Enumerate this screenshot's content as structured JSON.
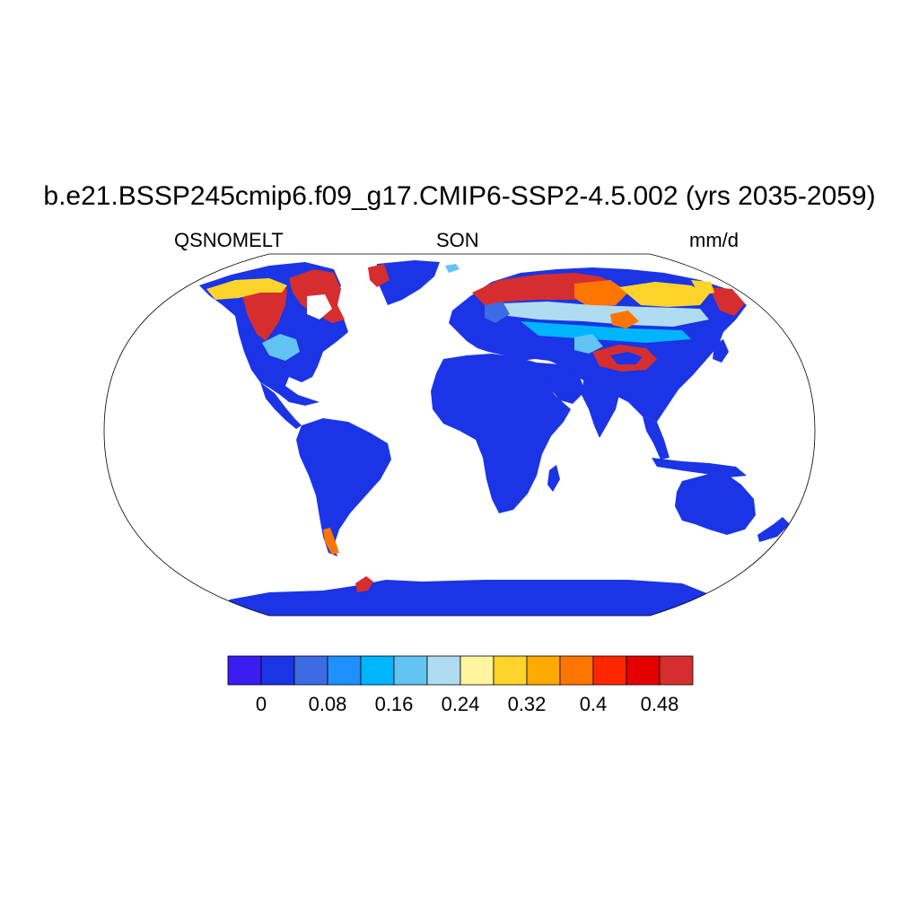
{
  "title": "b.e21.BSSP245cmip6.f09_g17.CMIP6-SSP2-4.5.002 (yrs 2035-2059)",
  "variable": "QSNOMELT",
  "season": "SON",
  "units": "mm/d",
  "colorbar": {
    "colors": [
      "#3b1cf1",
      "#1a34e6",
      "#3c6be3",
      "#1e90ff",
      "#00b5ff",
      "#61c4f2",
      "#b0dcf2",
      "#fff59e",
      "#ffd42a",
      "#ffaa00",
      "#ff7500",
      "#ff2600",
      "#e50000",
      "#d62e2e"
    ],
    "tick_labels": [
      "0",
      "0.08",
      "0.16",
      "0.24",
      "0.32",
      "0.4",
      "0.48"
    ]
  },
  "legend_colors": {
    "land_base": "#1a34e6",
    "ocean": "#ffffff",
    "coast": "#000000"
  }
}
